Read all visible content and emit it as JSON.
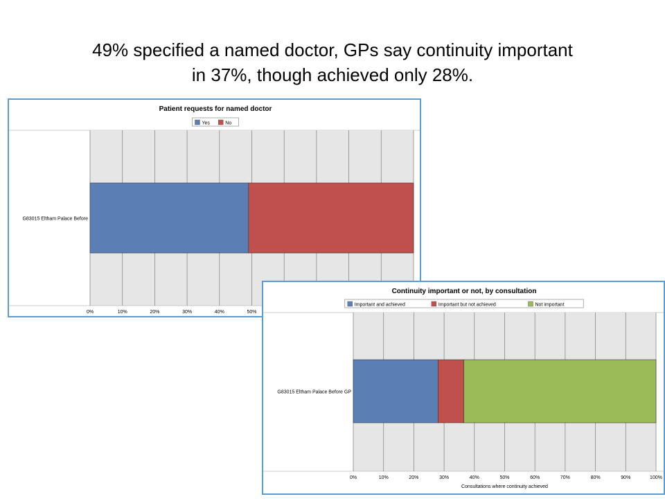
{
  "slide": {
    "title_line1": "49% specified a named doctor, GPs say continuity important",
    "title_line2": "in 37%, though achieved only 28%."
  },
  "chart_data": [
    {
      "type": "bar",
      "orientation": "horizontal",
      "stacked": "percent",
      "title": "Patient requests for named doctor",
      "categories": [
        "G83015 Eltham Palace   Before"
      ],
      "series": [
        {
          "name": "Yes",
          "color": "#5b7fb5",
          "values": [
            49
          ]
        },
        {
          "name": "No",
          "color": "#c0504d",
          "values": [
            51
          ]
        }
      ],
      "xlim": [
        0,
        100
      ],
      "xticks": [
        "0%",
        "10%",
        "20%",
        "30%",
        "40%",
        "50%"
      ],
      "xlabel": "",
      "legend": "top",
      "grid": true
    },
    {
      "type": "bar",
      "orientation": "horizontal",
      "stacked": "percent",
      "title": "Continuity important or not, by consultation",
      "categories": [
        "G83015 Eltham Palace   Before   GP"
      ],
      "series": [
        {
          "name": "Important and achieved",
          "color": "#5b7fb5",
          "values": [
            28
          ]
        },
        {
          "name": "Important but not achieved",
          "color": "#c0504d",
          "values": [
            8.5
          ]
        },
        {
          "name": "Not important",
          "color": "#9bbb59",
          "values": [
            63.5
          ]
        }
      ],
      "xlim": [
        0,
        100
      ],
      "xticks": [
        "0%",
        "10%",
        "20%",
        "30%",
        "40%",
        "50%",
        "60%",
        "70%",
        "80%",
        "90%",
        "100%"
      ],
      "xlabel": "Consultations where continuity achieved",
      "legend": "top",
      "grid": true
    }
  ]
}
